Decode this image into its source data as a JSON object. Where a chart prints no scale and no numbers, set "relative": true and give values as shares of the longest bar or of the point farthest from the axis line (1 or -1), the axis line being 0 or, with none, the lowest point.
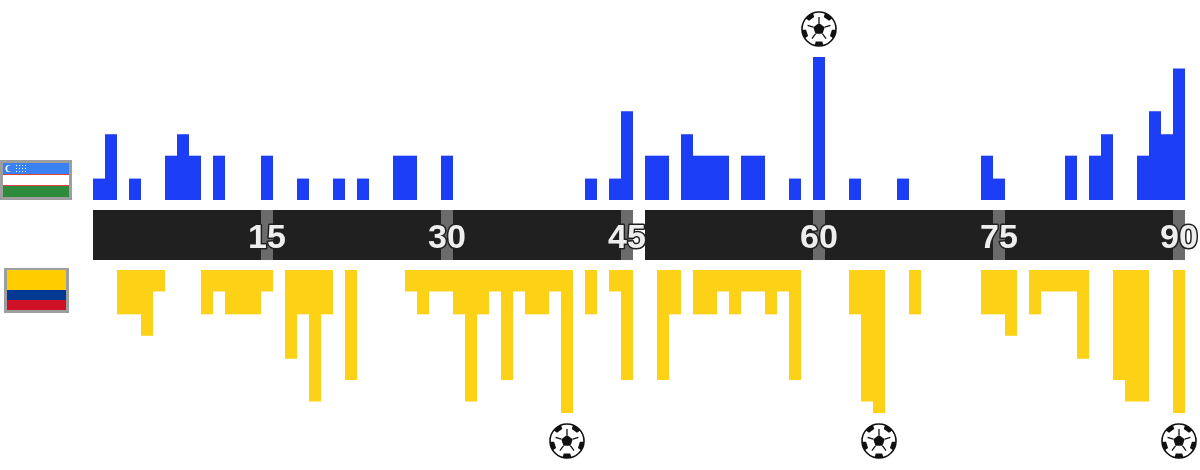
{
  "chart_data": [
    {
      "type": "bar",
      "relative": true,
      "categories": [
        null,
        null,
        null,
        null,
        null,
        null,
        null,
        null,
        null,
        null,
        null,
        null,
        null,
        null,
        "15",
        null,
        null,
        null,
        null,
        null,
        null,
        null,
        null,
        null,
        null,
        null,
        null,
        null,
        null,
        "30",
        null,
        null,
        null,
        null,
        null,
        null,
        null,
        null,
        null,
        null,
        null,
        null,
        null,
        null,
        "45",
        null,
        null,
        null,
        null,
        null,
        null,
        null,
        null,
        null,
        null,
        null,
        null,
        null,
        null,
        null,
        "60",
        null,
        null,
        null,
        null,
        null,
        null,
        null,
        null,
        null,
        null,
        null,
        null,
        null,
        null,
        "75",
        null,
        null,
        null,
        null,
        null,
        null,
        null,
        null,
        null,
        null,
        null,
        null,
        null,
        null,
        "90"
      ],
      "series": [
        {
          "color": "#1c3ff5",
          "values": [
            0.15,
            0.46,
            0,
            0.15,
            0,
            0,
            0.31,
            0.46,
            0.31,
            0,
            0.31,
            0,
            0,
            0,
            0.31,
            0,
            0,
            0.15,
            0,
            0,
            0.15,
            0,
            0.15,
            0,
            0,
            0.31,
            0.31,
            0,
            0,
            0.31,
            0,
            0,
            0,
            0,
            0,
            0,
            0,
            0,
            0,
            0,
            0,
            0.15,
            0,
            0.15,
            0.62,
            null,
            0.31,
            0.31,
            0,
            0.46,
            0.31,
            0.31,
            0.31,
            0,
            0.31,
            0.31,
            0,
            0,
            0.15,
            0,
            1,
            0,
            0,
            0.15,
            0,
            0,
            0,
            0.15,
            0,
            0,
            0,
            0,
            0,
            0,
            0.31,
            0.15,
            0,
            0,
            0,
            0,
            0,
            0.31,
            0,
            0.31,
            0.46,
            0,
            0,
            0.31,
            0.62,
            0.46,
            0.92
          ]
        }
      ]
    },
    {
      "type": "bar",
      "relative": true,
      "tick_labels": false,
      "categories": [
        null,
        null,
        null,
        null,
        null,
        null,
        null,
        null,
        null,
        null,
        null,
        null,
        null,
        null,
        "15",
        null,
        null,
        null,
        null,
        null,
        null,
        null,
        null,
        null,
        null,
        null,
        null,
        null,
        null,
        "30",
        null,
        null,
        null,
        null,
        null,
        null,
        null,
        null,
        null,
        null,
        null,
        null,
        null,
        null,
        "45",
        null,
        null,
        null,
        null,
        null,
        null,
        null,
        null,
        null,
        null,
        null,
        null,
        null,
        null,
        null,
        "60",
        null,
        null,
        null,
        null,
        null,
        null,
        null,
        null,
        null,
        null,
        null,
        null,
        null,
        null,
        "75",
        null,
        null,
        null,
        null,
        null,
        null,
        null,
        null,
        null,
        null,
        null,
        null,
        null,
        null,
        "90"
      ],
      "series": [
        {
          "color": "#fcd116",
          "values": [
            0,
            0,
            -0.31,
            -0.31,
            -0.46,
            -0.15,
            0,
            0,
            0,
            -0.31,
            -0.15,
            -0.31,
            -0.31,
            -0.31,
            -0.15,
            0,
            -0.62,
            -0.31,
            -0.92,
            -0.31,
            0,
            -0.77,
            0,
            0,
            0,
            0,
            -0.15,
            -0.31,
            -0.15,
            -0.15,
            -0.31,
            -0.92,
            -0.31,
            -0.15,
            -0.77,
            -0.15,
            -0.31,
            -0.31,
            -0.15,
            -1,
            0,
            -0.31,
            0,
            -0.15,
            -0.77,
            null,
            0,
            -0.77,
            -0.31,
            0,
            -0.31,
            -0.31,
            -0.15,
            -0.31,
            -0.15,
            -0.15,
            -0.31,
            -0.15,
            -0.77,
            0,
            0,
            0,
            0,
            -0.31,
            -0.92,
            -1,
            0,
            0,
            -0.31,
            0,
            0,
            0,
            0,
            0,
            -0.31,
            -0.31,
            -0.46,
            0,
            -0.31,
            -0.15,
            -0.15,
            -0.15,
            -0.62,
            0,
            0,
            -0.77,
            -0.92,
            -0.92,
            0,
            0,
            -1
          ]
        }
      ]
    }
  ]
}
